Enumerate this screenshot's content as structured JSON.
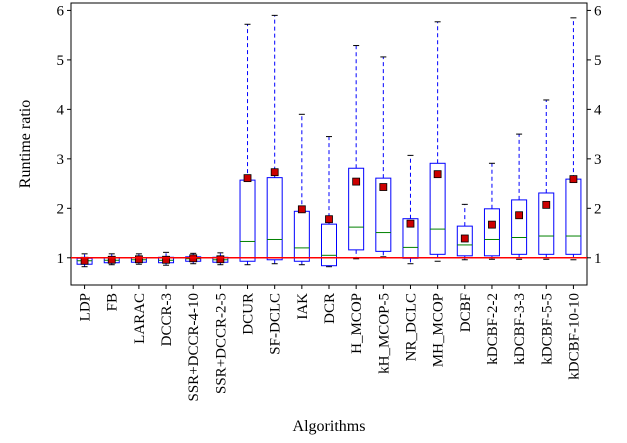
{
  "chart_data": {
    "type": "boxplot",
    "xlabel": "Algorithms",
    "ylabel": "Runtime ratio",
    "ylim": [
      0.45,
      6.15
    ],
    "yticks": [
      1,
      2,
      3,
      4,
      5,
      6
    ],
    "right_axis_ticks": true,
    "grid": false,
    "reference_line": {
      "y": 1,
      "color": "#ff0000"
    },
    "colors": {
      "box": "#0000ff",
      "whisker": "#0000ff",
      "median": "#008000",
      "mean_marker": "#cc0000",
      "mean_edge": "#000000",
      "reference": "#ff0000"
    },
    "categories": [
      "LDP",
      "FB",
      "LARAC",
      "DCCR-3",
      "SSR+DCCR-4-10",
      "SSR+DCCR-2-5",
      "DCUR",
      "SF-DCLC",
      "IAK",
      "DCR",
      "H_MCOP",
      "kH_MCOP-5",
      "NR_DCLC",
      "MH_MCOP",
      "DCBF",
      "kDCBF-2-2",
      "kDCBF-3-3",
      "kDCBF-5-5",
      "kDCBF-10-10"
    ],
    "boxes": [
      {
        "whislo": 0.82,
        "q1": 0.87,
        "med": 0.94,
        "q3": 0.99,
        "whishi": 1.08,
        "mean": 0.94
      },
      {
        "whislo": 0.86,
        "q1": 0.9,
        "med": 0.95,
        "q3": 1.0,
        "whishi": 1.08,
        "mean": 0.96
      },
      {
        "whislo": 0.87,
        "q1": 0.91,
        "med": 0.96,
        "q3": 1.0,
        "whishi": 1.08,
        "mean": 0.97
      },
      {
        "whislo": 0.85,
        "q1": 0.9,
        "med": 0.95,
        "q3": 1.01,
        "whishi": 1.11,
        "mean": 0.96
      },
      {
        "whislo": 0.88,
        "q1": 0.93,
        "med": 0.98,
        "q3": 1.02,
        "whishi": 1.09,
        "mean": 0.99
      },
      {
        "whislo": 0.86,
        "q1": 0.91,
        "med": 0.96,
        "q3": 1.01,
        "whishi": 1.1,
        "mean": 0.97
      },
      {
        "whislo": 0.86,
        "q1": 0.93,
        "med": 1.33,
        "q3": 2.57,
        "whishi": 5.72,
        "mean": 2.61
      },
      {
        "whislo": 0.88,
        "q1": 0.96,
        "med": 1.37,
        "q3": 2.62,
        "whishi": 5.9,
        "mean": 2.73
      },
      {
        "whislo": 0.86,
        "q1": 0.93,
        "med": 1.2,
        "q3": 1.94,
        "whishi": 3.9,
        "mean": 1.98
      },
      {
        "whislo": 0.82,
        "q1": 0.84,
        "med": 1.05,
        "q3": 1.68,
        "whishi": 3.45,
        "mean": 1.78
      },
      {
        "whislo": 0.98,
        "q1": 1.16,
        "med": 1.62,
        "q3": 2.81,
        "whishi": 5.29,
        "mean": 2.54
      },
      {
        "whislo": 1.02,
        "q1": 1.13,
        "med": 1.51,
        "q3": 2.61,
        "whishi": 5.06,
        "mean": 2.43
      },
      {
        "whislo": 0.88,
        "q1": 0.99,
        "med": 1.21,
        "q3": 1.79,
        "whishi": 3.07,
        "mean": 1.69
      },
      {
        "whislo": 0.93,
        "q1": 1.07,
        "med": 1.58,
        "q3": 2.91,
        "whishi": 5.77,
        "mean": 2.69
      },
      {
        "whislo": 0.96,
        "q1": 1.04,
        "med": 1.26,
        "q3": 1.64,
        "whishi": 2.08,
        "mean": 1.39
      },
      {
        "whislo": 0.97,
        "q1": 1.04,
        "med": 1.37,
        "q3": 1.99,
        "whishi": 2.91,
        "mean": 1.67
      },
      {
        "whislo": 0.97,
        "q1": 1.07,
        "med": 1.41,
        "q3": 2.17,
        "whishi": 3.5,
        "mean": 1.86
      },
      {
        "whislo": 0.97,
        "q1": 1.07,
        "med": 1.44,
        "q3": 2.31,
        "whishi": 4.19,
        "mean": 2.07
      },
      {
        "whislo": 0.96,
        "q1": 1.07,
        "med": 1.44,
        "q3": 2.59,
        "whishi": 5.85,
        "mean": 2.59
      }
    ]
  }
}
